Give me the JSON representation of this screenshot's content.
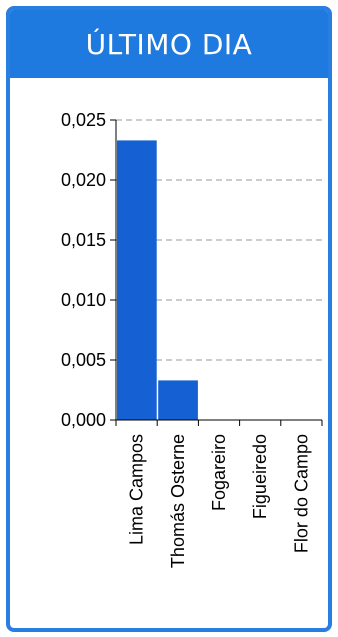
{
  "header": {
    "title": "ÚLTIMO DIA"
  },
  "colors": {
    "accent": "#1f7ae0",
    "bar": "#1560d2",
    "border": "#2a7de1"
  },
  "chart_data": {
    "type": "bar",
    "categories": [
      "Lima Campos",
      "Thomás Osterne",
      "Fogareiro",
      "Figueiredo",
      "Flor do Campo"
    ],
    "values": [
      0.0233,
      0.0033,
      0,
      0,
      0
    ],
    "title": "ÚLTIMO DIA",
    "xlabel": "",
    "ylabel": "",
    "ylim": [
      0,
      0.025
    ],
    "yticks": [
      "0,000",
      "0,005",
      "0,010",
      "0,015",
      "0,020",
      "0,025"
    ],
    "grid": true,
    "legend": "none"
  }
}
